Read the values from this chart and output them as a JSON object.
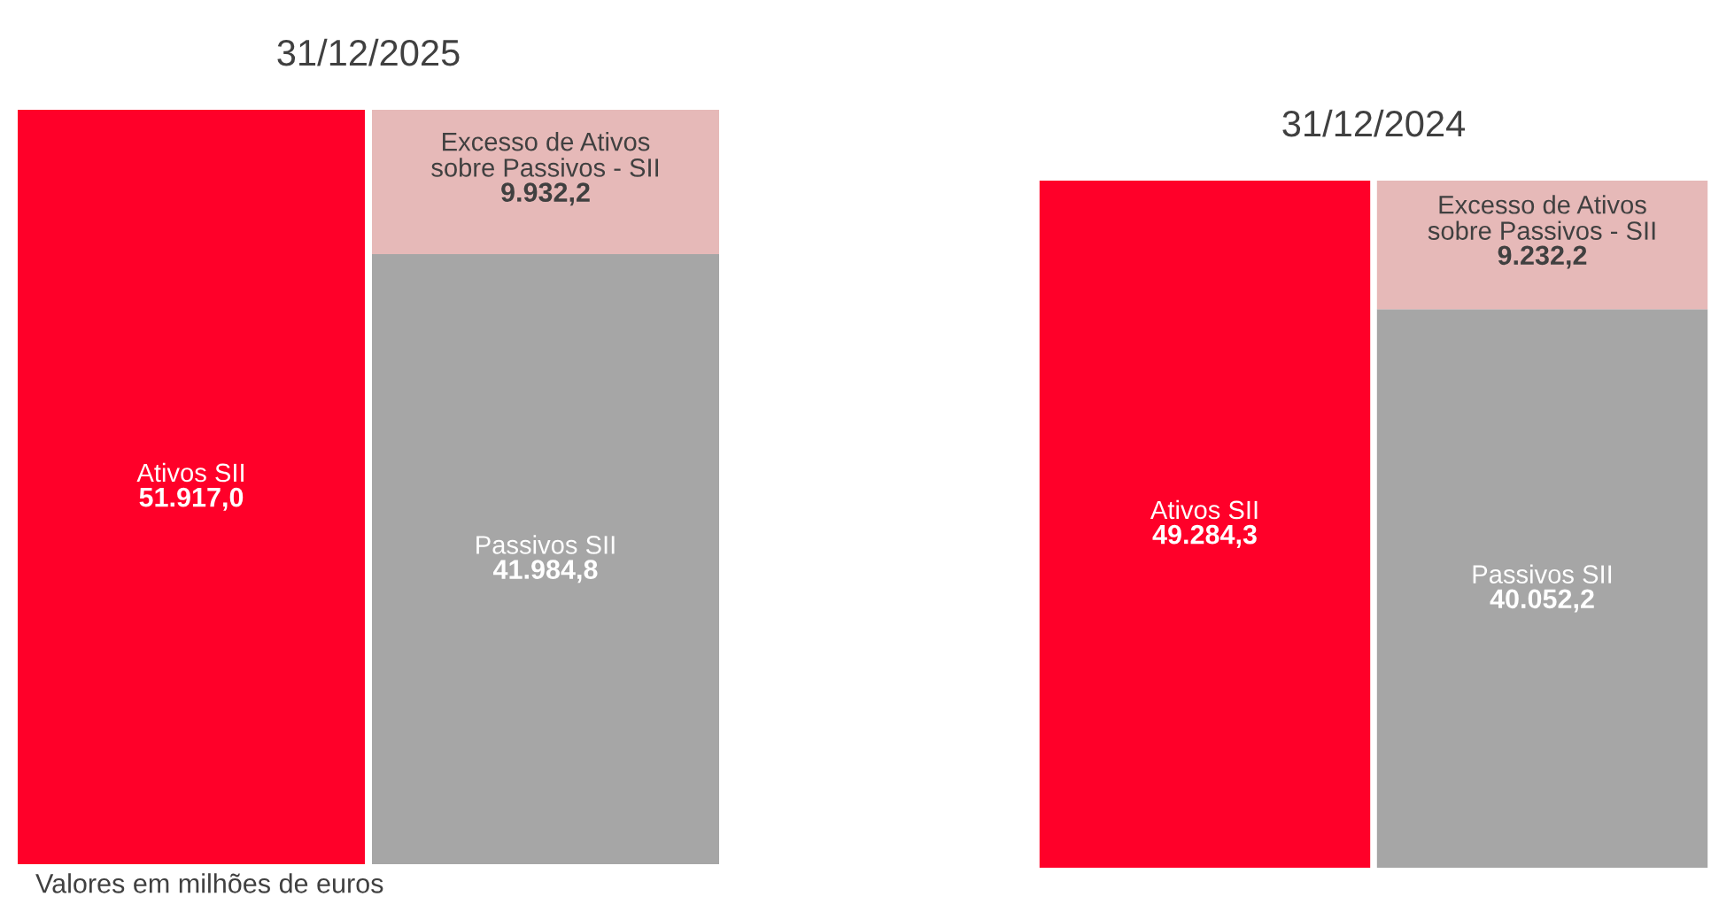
{
  "chart_data": [
    {
      "type": "bar",
      "title": "31/12/2025",
      "stacked": true,
      "categories": [
        null,
        null
      ],
      "series": [
        {
          "name": "Ativos SII",
          "color": "#ff0029",
          "values": [
            51917.0,
            null
          ],
          "value_labels": [
            "51.917,0",
            null
          ]
        },
        {
          "name": "Passivos SII",
          "color": "#a6a6a6",
          "values": [
            null,
            41984.8
          ],
          "value_labels": [
            null,
            "41.984,8"
          ]
        },
        {
          "name": "Excesso de Ativos sobre Passivos - SII",
          "color": "#e6b9b8",
          "values": [
            null,
            9932.2
          ],
          "value_labels": [
            null,
            "9.932,2"
          ]
        }
      ],
      "annotations": [
        "Valores em milhões de euros"
      ]
    },
    {
      "type": "bar",
      "title": "31/12/2024",
      "stacked": true,
      "categories": [
        null,
        null
      ],
      "series": [
        {
          "name": "Ativos SII",
          "color": "#ff0029",
          "values": [
            49284.3,
            null
          ],
          "value_labels": [
            "49.284,3",
            null
          ]
        },
        {
          "name": "Passivos SII",
          "color": "#a6a6a6",
          "values": [
            null,
            40052.2
          ],
          "value_labels": [
            null,
            "40.052,2"
          ]
        },
        {
          "name": "Excesso de Ativos sobre Passivos - SII",
          "color": "#e6b9b8",
          "values": [
            null,
            9232.2
          ],
          "value_labels": [
            null,
            "9.232,2"
          ]
        }
      ]
    }
  ]
}
